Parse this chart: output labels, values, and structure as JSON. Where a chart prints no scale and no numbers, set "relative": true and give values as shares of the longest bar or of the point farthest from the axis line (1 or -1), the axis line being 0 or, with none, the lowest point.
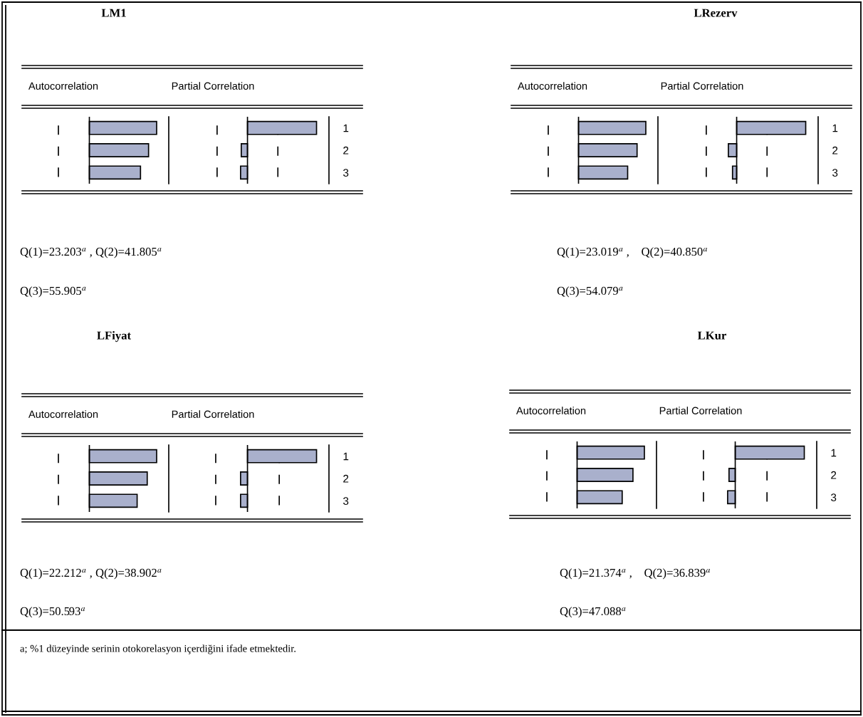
{
  "chart_data": [
    {
      "type": "bar",
      "orientation": "horizontal",
      "relative": true,
      "title": "LM1",
      "subtitle": "Autocorrelation",
      "categories": [
        "1",
        "2",
        "3"
      ],
      "values": [
        1,
        0.88,
        0.76
      ],
      "color": "#a9b0cc",
      "tick_labels": false,
      "ref_lines": [
        {
          "axis": "x",
          "value": -0.46,
          "line_style": "dashed"
        }
      ],
      "annotations": [
        "Q(1)=23.203$^{a}$ , Q(2)=41.805$^{a}$",
        "Q(3)=55.905$^{a}$"
      ]
    },
    {
      "type": "bar",
      "orientation": "horizontal",
      "relative": true,
      "subtitle": "Partial Correlation",
      "categories": [
        "1",
        "2",
        "3"
      ],
      "values": [
        1,
        -0.09,
        -0.1
      ],
      "color": "#a9b0cc",
      "tick_labels": "y",
      "ref_lines": [
        {
          "axis": "x",
          "value": -0.44,
          "line_style": "dashed"
        },
        {
          "axis": "x",
          "value": 0.44,
          "line_style": "dashed"
        }
      ]
    },
    {
      "type": "bar",
      "orientation": "horizontal",
      "relative": true,
      "subtitle": "Autocorrelation",
      "categories": [
        "1",
        "2",
        "3"
      ],
      "values": [
        1,
        0.87,
        0.73
      ],
      "color": "#a9b0cc",
      "tick_labels": false,
      "ref_lines": [
        {
          "axis": "x",
          "value": -0.45,
          "line_style": "dashed"
        }
      ],
      "annotations": [
        "Q(1)=23.019$^{a}$ ,    Q(2)=40.850$^{a}$",
        "Q(3)=54.079$^{a}$"
      ]
    },
    {
      "type": "bar",
      "orientation": "horizontal",
      "relative": true,
      "title": "LRezerv",
      "subtitle": "Partial Correlation",
      "categories": [
        "1",
        "2",
        "3"
      ],
      "values": [
        1,
        -0.12,
        -0.06
      ],
      "color": "#a9b0cc",
      "tick_labels": "y",
      "ref_lines": [
        {
          "axis": "x",
          "value": -0.44,
          "line_style": "dashed"
        },
        {
          "axis": "x",
          "value": 0.44,
          "line_style": "dashed"
        }
      ]
    },
    {
      "type": "bar",
      "orientation": "horizontal",
      "relative": true,
      "title": "LFiyat",
      "subtitle": "Autocorrelation",
      "categories": [
        "1",
        "2",
        "3"
      ],
      "values": [
        1,
        0.86,
        0.71
      ],
      "color": "#a9b0cc",
      "tick_labels": false,
      "ref_lines": [
        {
          "axis": "x",
          "value": -0.46,
          "line_style": "dashed"
        }
      ],
      "annotations": [
        "Q(1)=22.212$^{a}$ , Q(2)=38.902$^{a}$",
        "Q(3)=50.593$^{a}$"
      ]
    },
    {
      "type": "bar",
      "orientation": "horizontal",
      "relative": true,
      "subtitle": "Partial Correlation",
      "categories": [
        "1",
        "2",
        "3"
      ],
      "values": [
        1,
        -0.1,
        -0.1
      ],
      "color": "#a9b0cc",
      "tick_labels": "y",
      "ref_lines": [
        {
          "axis": "x",
          "value": -0.46,
          "line_style": "dashed"
        },
        {
          "axis": "x",
          "value": 0.46,
          "line_style": "dashed"
        }
      ]
    },
    {
      "type": "bar",
      "orientation": "horizontal",
      "relative": true,
      "subtitle": "Autocorrelation",
      "categories": [
        "1",
        "2",
        "3"
      ],
      "values": [
        1,
        0.83,
        0.67
      ],
      "color": "#a9b0cc",
      "tick_labels": false,
      "ref_lines": [
        {
          "axis": "x",
          "value": -0.45,
          "line_style": "dashed"
        }
      ],
      "annotations": [
        "Q(1)=21.374$^{a}$ ,    Q(2)=36.839$^{a}$",
        "Q(3)=47.088$^{a}$"
      ]
    },
    {
      "type": "bar",
      "orientation": "horizontal",
      "relative": true,
      "title": "LKur",
      "subtitle": "Partial Correlation",
      "categories": [
        "1",
        "2",
        "3"
      ],
      "values": [
        1,
        -0.09,
        -0.11
      ],
      "color": "#a9b0cc",
      "tick_labels": "y",
      "ref_lines": [
        {
          "axis": "x",
          "value": -0.46,
          "line_style": "dashed"
        },
        {
          "axis": "x",
          "value": 0.46,
          "line_style": "dashed"
        }
      ],
      "annotations": [
        "a; %1 düzeyinde serinin otokorelasyon içerdiğini ifade etmektedir."
      ]
    }
  ]
}
